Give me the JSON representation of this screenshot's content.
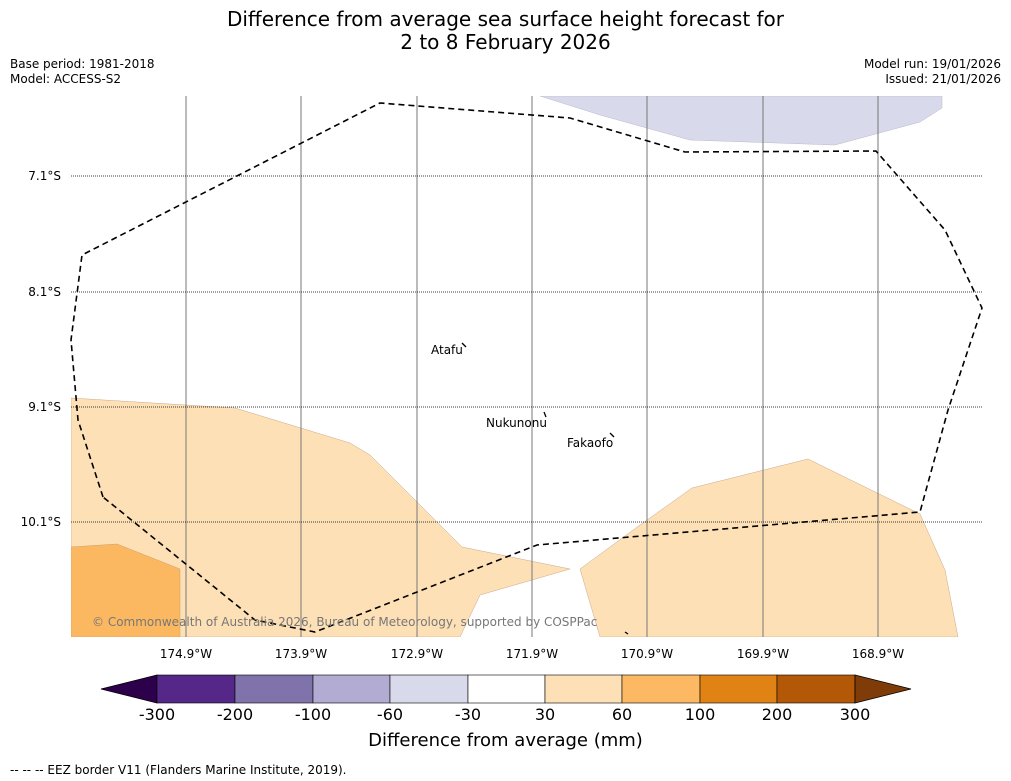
{
  "title": {
    "line1": "Difference from average sea surface height forecast for",
    "line2": "2 to 8 February 2026"
  },
  "meta_left": {
    "base_period": "Base period: 1981-2018",
    "model": "Model: ACCESS-S2"
  },
  "meta_right": {
    "model_run": "Model run: 19/01/2026",
    "issued": "Issued: 21/01/2026"
  },
  "map": {
    "lat_labels": [
      "7.1°S",
      "8.1°S",
      "9.1°S",
      "10.1°S"
    ],
    "lon_labels": [
      "174.9°W",
      "173.9°W",
      "172.9°W",
      "171.9°W",
      "170.9°W",
      "169.9°W",
      "168.9°W"
    ],
    "places": [
      "Atafu",
      "Nukunonu",
      "Fakaofo"
    ],
    "copyright": "© Commonwealth of Australia 2026, Bureau of Meteorology, supported by COSPPac",
    "colors": {
      "cat_30_60": "#fde0b6",
      "cat_60_100": "#fbb861",
      "cat_neg60_neg30": "#d8d9ea"
    }
  },
  "colorbar": {
    "title": "Difference from average (mm)",
    "ticks": [
      "-300",
      "-200",
      "-100",
      "-60",
      "-30",
      "30",
      "60",
      "100",
      "200",
      "300"
    ],
    "colors": [
      "#2d004b",
      "#542788",
      "#8073ac",
      "#b2abd2",
      "#d8daeb",
      "#ffffff",
      "#fee0b6",
      "#fdb863",
      "#e08214",
      "#b35806",
      "#7f3b08"
    ]
  },
  "footer": "--  --  -- EEZ border V11 (Flanders Marine Institute, 2019)."
}
